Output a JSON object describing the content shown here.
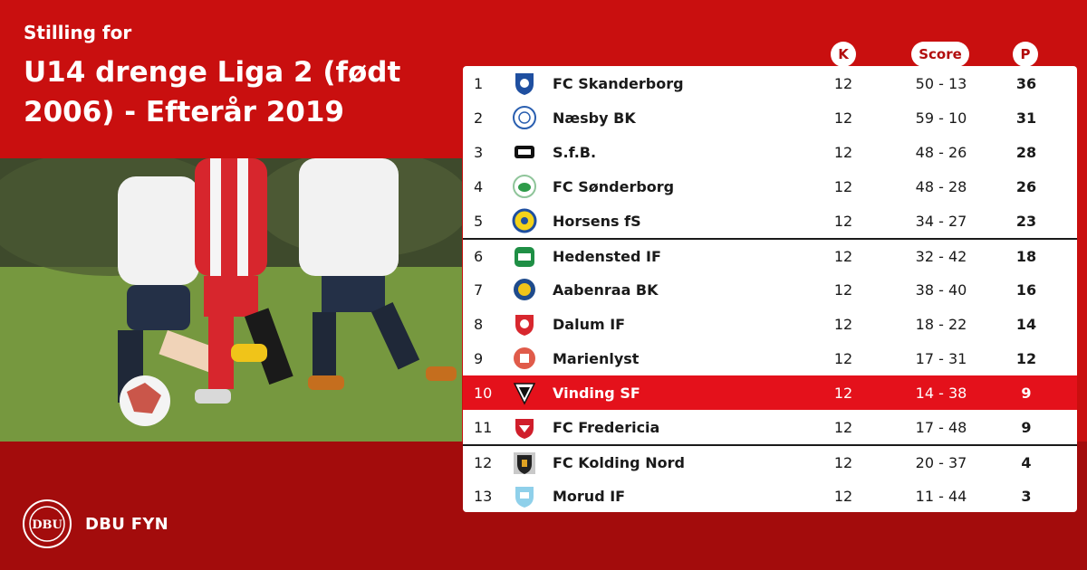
{
  "header": {
    "subtitle": "Stilling for",
    "title": "U14 drenge Liga 2 (født 2006) - Efterår 2019"
  },
  "columns": {
    "k": "K",
    "score": "Score",
    "p": "P"
  },
  "brand": {
    "name": "DBU FYN",
    "seal_text": "DBU"
  },
  "colors": {
    "primary_red": "#c90f0f",
    "dark_red": "#a30c0c",
    "highlight_red": "#e4111b"
  },
  "standings": [
    {
      "pos": "1",
      "team": "FC Skanderborg",
      "k": "12",
      "score": "50 - 13",
      "p": "36",
      "logo": "fc-skanderborg-crest"
    },
    {
      "pos": "2",
      "team": "Næsby BK",
      "k": "12",
      "score": "59 - 10",
      "p": "31",
      "logo": "naesby-bk-crest"
    },
    {
      "pos": "3",
      "team": "S.f.B.",
      "k": "12",
      "score": "48 - 26",
      "p": "28",
      "logo": "sfb-crest"
    },
    {
      "pos": "4",
      "team": "FC Sønderborg",
      "k": "12",
      "score": "48 - 28",
      "p": "26",
      "logo": "fc-sonderborg-crest"
    },
    {
      "pos": "5",
      "team": "Horsens fS",
      "k": "12",
      "score": "34 - 27",
      "p": "23",
      "logo": "horsens-fs-crest"
    },
    {
      "pos": "6",
      "team": "Hedensted IF",
      "k": "12",
      "score": "32 - 42",
      "p": "18",
      "logo": "hedensted-if-crest"
    },
    {
      "pos": "7",
      "team": "Aabenraa BK",
      "k": "12",
      "score": "38 - 40",
      "p": "16",
      "logo": "aabenraa-bk-crest"
    },
    {
      "pos": "8",
      "team": "Dalum IF",
      "k": "12",
      "score": "18 - 22",
      "p": "14",
      "logo": "dalum-if-crest"
    },
    {
      "pos": "9",
      "team": "Marienlyst",
      "k": "12",
      "score": "17 - 31",
      "p": "12",
      "logo": "marienlyst-crest"
    },
    {
      "pos": "10",
      "team": "Vinding SF",
      "k": "12",
      "score": "14 - 38",
      "p": "9",
      "logo": "vinding-sf-crest"
    },
    {
      "pos": "11",
      "team": "FC Fredericia",
      "k": "12",
      "score": "17 - 48",
      "p": "9",
      "logo": "fc-fredericia-crest"
    },
    {
      "pos": "12",
      "team": "FC Kolding Nord",
      "k": "12",
      "score": "20 - 37",
      "p": "4",
      "logo": "fc-kolding-nord-crest"
    },
    {
      "pos": "13",
      "team": "Morud IF",
      "k": "12",
      "score": "11 - 44",
      "p": "3",
      "logo": "morud-if-crest"
    }
  ]
}
